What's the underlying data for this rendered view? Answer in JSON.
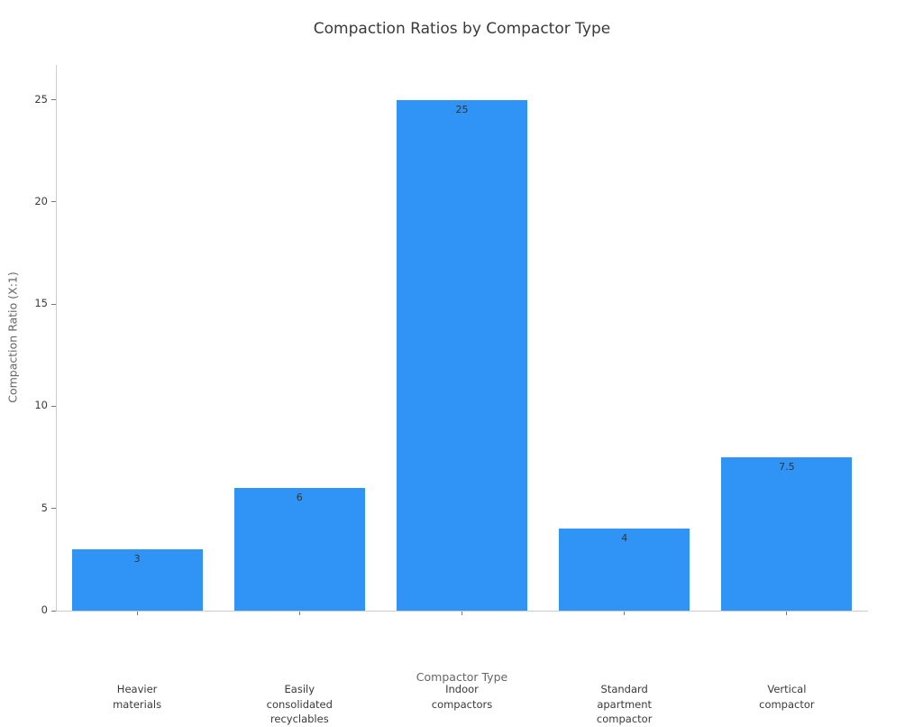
{
  "chart_data": {
    "type": "bar",
    "title": "Compaction Ratios by Compactor Type",
    "xlabel": "Compactor Type",
    "ylabel": "Compaction Ratio (X:1)",
    "categories": [
      "Heavier\nmaterials",
      "Easily\nconsolidated\nrecyclables",
      "Indoor\ncompactors",
      "Standard\napartment\ncompactor",
      "Vertical\ncompactor"
    ],
    "values": [
      3,
      6,
      25,
      4,
      7.5
    ],
    "value_labels": [
      "3",
      "6",
      "25",
      "4",
      "7.5"
    ],
    "yticks": [
      0,
      5,
      10,
      15,
      20,
      25
    ],
    "ylim": [
      0,
      26.7
    ],
    "bar_color": "#2F94F5",
    "grid": false,
    "legend": null
  }
}
